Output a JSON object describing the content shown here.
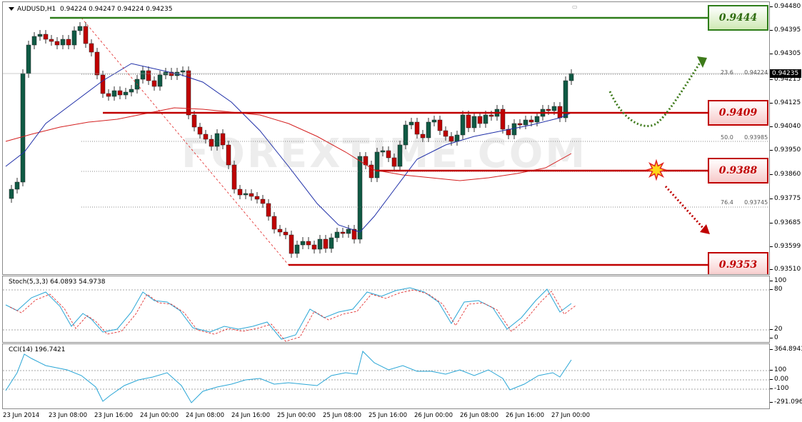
{
  "header": {
    "symbol": "AUDUSD,H1",
    "ohlc": "0.94224 0.94247 0.94224 0.94235"
  },
  "watermark": "FOREXTIME.COM",
  "price_axis": [
    "0.94480",
    "0.94395",
    "0.94305",
    "0.94215",
    "0.94125",
    "0.94040",
    "0.93950",
    "0.93860",
    "0.93775",
    "0.93685",
    "0.93599",
    "0.93510"
  ],
  "current_price": "0.94235",
  "levels": {
    "l1": "0.9444",
    "l2": "0.9409",
    "l3": "0.9388",
    "l4": "0.9353"
  },
  "fib": {
    "f1_ratio": "23.6",
    "f1_value": "0.94224",
    "f2_ratio": "50.0",
    "f2_value": "0.93985",
    "f3_ratio": "76.4",
    "f3_value": "0.93745"
  },
  "stoch": {
    "label": "Stoch(5,3,3) 64.0893 54.9738",
    "axis": [
      "100",
      "80",
      "20",
      "0"
    ]
  },
  "cci": {
    "label": "CCI(14) 196.7421",
    "axis": [
      "364.8943",
      "100",
      "0.00",
      "-100",
      "-291.0966"
    ]
  },
  "time_axis": [
    "23 Jun 2014",
    "23 Jun 08:00",
    "23 Jun 16:00",
    "24 Jun 00:00",
    "24 Jun 08:00",
    "24 Jun 16:00",
    "25 Jun 00:00",
    "25 Jun 08:00",
    "25 Jun 16:00",
    "26 Jun 00:00",
    "26 Jun 08:00",
    "26 Jun 16:00",
    "27 Jun 00:00"
  ],
  "colors": {
    "bull": "#0f5a44",
    "bear": "#c00000",
    "ma_fast": "#1f2fa8",
    "ma_slow": "#d42020",
    "resistance": "#2e7d1a",
    "support": "#c00000",
    "stoch_main": "#2aa6d6",
    "cci": "#2aa6d6"
  }
}
